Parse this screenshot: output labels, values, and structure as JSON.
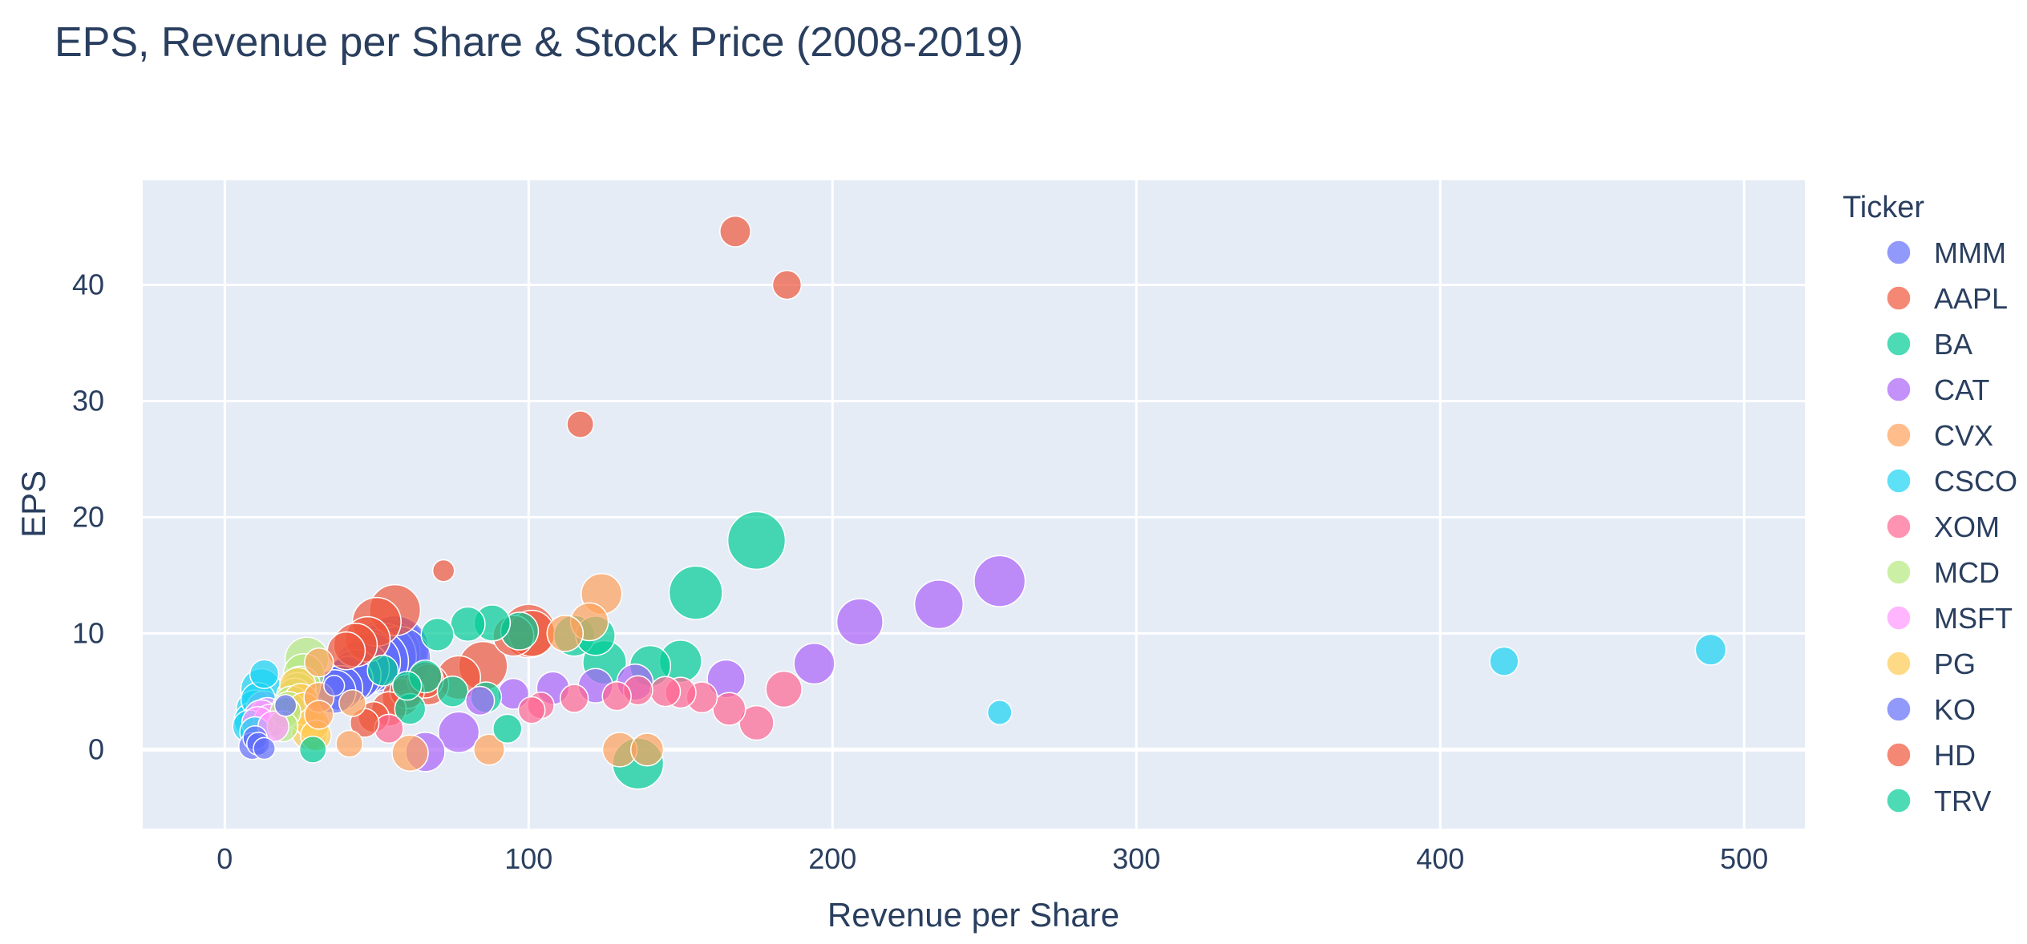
{
  "chart_data": {
    "type": "scatter",
    "title": "EPS, Revenue per Share & Stock Price (2008-2019)",
    "xlabel": "Revenue per Share",
    "ylabel": "EPS",
    "xlim": [
      -27,
      520
    ],
    "ylim": [
      -6.8,
      49
    ],
    "x_ticks": [
      0,
      100,
      200,
      300,
      400,
      500
    ],
    "y_ticks": [
      0,
      10,
      20,
      30,
      40
    ],
    "grid": true,
    "legend_title": "Ticker",
    "legend_position": "right",
    "plot_background": "#e5ecf6",
    "size_variable": "Stock Price",
    "series": [
      {
        "name": "MMM",
        "color": "#636efa",
        "points": [
          {
            "x": 36,
            "y": 5.0,
            "size": 80
          },
          {
            "x": 38,
            "y": 5.3,
            "size": 85
          },
          {
            "x": 41,
            "y": 6.0,
            "size": 95
          },
          {
            "x": 43,
            "y": 6.4,
            "size": 110
          },
          {
            "x": 45,
            "y": 7.0,
            "size": 130
          },
          {
            "x": 48,
            "y": 7.5,
            "size": 150
          },
          {
            "x": 50,
            "y": 7.6,
            "size": 170
          },
          {
            "x": 52,
            "y": 8.0,
            "size": 190
          },
          {
            "x": 53,
            "y": 8.3,
            "size": 200
          },
          {
            "x": 55,
            "y": 8.5,
            "size": 210
          },
          {
            "x": 56,
            "y": 8.6,
            "size": 195
          },
          {
            "x": 57,
            "y": 7.8,
            "size": 180
          }
        ]
      },
      {
        "name": "AAPL",
        "color": "#EF553B",
        "points": [
          {
            "x": 72,
            "y": 15.4,
            "size": 20
          },
          {
            "x": 117,
            "y": 28.0,
            "size": 30
          },
          {
            "x": 168,
            "y": 44.6,
            "size": 40
          },
          {
            "x": 185,
            "y": 40.0,
            "size": 35
          },
          {
            "x": 101,
            "y": 10.0,
            "size": 90
          },
          {
            "x": 56,
            "y": 12.0,
            "size": 110
          },
          {
            "x": 50,
            "y": 11.0,
            "size": 100
          },
          {
            "x": 43,
            "y": 9.0,
            "size": 80
          },
          {
            "x": 47,
            "y": 9.5,
            "size": 85
          },
          {
            "x": 95,
            "y": 9.8,
            "size": 70
          },
          {
            "x": 66,
            "y": 6.0,
            "size": 55
          },
          {
            "x": 60,
            "y": 5.0,
            "size": 50
          }
        ]
      },
      {
        "name": "BA",
        "color": "#00cc96",
        "points": [
          {
            "x": 175,
            "y": 18.0,
            "size": 140
          },
          {
            "x": 155,
            "y": 13.5,
            "size": 120
          },
          {
            "x": 136,
            "y": -1.2,
            "size": 110
          },
          {
            "x": 125,
            "y": 7.5,
            "size": 80
          },
          {
            "x": 140,
            "y": 7.2,
            "size": 70
          },
          {
            "x": 150,
            "y": 7.6,
            "size": 75
          },
          {
            "x": 115,
            "y": 9.8,
            "size": 70
          },
          {
            "x": 122,
            "y": 9.8,
            "size": 65
          },
          {
            "x": 97,
            "y": 10.2,
            "size": 60
          },
          {
            "x": 88,
            "y": 10.9,
            "size": 55
          },
          {
            "x": 80,
            "y": 10.8,
            "size": 50
          },
          {
            "x": 70,
            "y": 9.9,
            "size": 45
          }
        ]
      },
      {
        "name": "CAT",
        "color": "#ab63fa",
        "points": [
          {
            "x": 255,
            "y": 14.5,
            "size": 110
          },
          {
            "x": 235,
            "y": 12.5,
            "size": 100
          },
          {
            "x": 209,
            "y": 11.0,
            "size": 90
          },
          {
            "x": 194,
            "y": 7.4,
            "size": 70
          },
          {
            "x": 165,
            "y": 6.1,
            "size": 60
          },
          {
            "x": 135,
            "y": 5.8,
            "size": 55
          },
          {
            "x": 122,
            "y": 5.5,
            "size": 50
          },
          {
            "x": 108,
            "y": 5.3,
            "size": 45
          },
          {
            "x": 95,
            "y": 4.8,
            "size": 40
          },
          {
            "x": 77,
            "y": 1.5,
            "size": 70
          },
          {
            "x": 66,
            "y": -0.2,
            "size": 65
          },
          {
            "x": 84,
            "y": 4.2,
            "size": 35
          }
        ]
      },
      {
        "name": "CVX",
        "color": "#FFA15A",
        "points": [
          {
            "x": 124,
            "y": 13.4,
            "size": 70
          },
          {
            "x": 120,
            "y": 11.0,
            "size": 60
          },
          {
            "x": 112,
            "y": 10.0,
            "size": 55
          },
          {
            "x": 130,
            "y": 0.0,
            "size": 50
          },
          {
            "x": 139,
            "y": 0.0,
            "size": 45
          },
          {
            "x": 87,
            "y": 0.0,
            "size": 40
          },
          {
            "x": 61,
            "y": -0.3,
            "size": 55
          },
          {
            "x": 41,
            "y": 0.5,
            "size": 30
          },
          {
            "x": 31,
            "y": 3.0,
            "size": 35
          },
          {
            "x": 31,
            "y": 4.5,
            "size": 38
          },
          {
            "x": 42,
            "y": 4.0,
            "size": 30
          },
          {
            "x": 31,
            "y": 7.5,
            "size": 35
          }
        ]
      },
      {
        "name": "CSCO",
        "color": "#19d3f3",
        "points": [
          {
            "x": 489,
            "y": 8.6,
            "size": 40
          },
          {
            "x": 421,
            "y": 7.6,
            "size": 35
          },
          {
            "x": 255,
            "y": 3.2,
            "size": 25
          },
          {
            "x": 12,
            "y": 5.2,
            "size": 70
          },
          {
            "x": 10,
            "y": 3.5,
            "size": 60
          },
          {
            "x": 9,
            "y": 2.5,
            "size": 55
          },
          {
            "x": 8,
            "y": 2.0,
            "size": 45
          },
          {
            "x": 13,
            "y": 6.5,
            "size": 35
          },
          {
            "x": 11,
            "y": 4.3,
            "size": 50
          },
          {
            "x": 10,
            "y": 1.5,
            "size": 40
          }
        ]
      },
      {
        "name": "XOM",
        "color": "#FF6692",
        "points": [
          {
            "x": 184,
            "y": 5.2,
            "size": 55
          },
          {
            "x": 175,
            "y": 2.3,
            "size": 50
          },
          {
            "x": 166,
            "y": 3.5,
            "size": 45
          },
          {
            "x": 157,
            "y": 4.5,
            "size": 40
          },
          {
            "x": 150,
            "y": 4.9,
            "size": 40
          },
          {
            "x": 145,
            "y": 5.0,
            "size": 38
          },
          {
            "x": 136,
            "y": 5.1,
            "size": 36
          },
          {
            "x": 129,
            "y": 4.6,
            "size": 35
          },
          {
            "x": 115,
            "y": 4.4,
            "size": 33
          },
          {
            "x": 104,
            "y": 3.8,
            "size": 30
          },
          {
            "x": 101,
            "y": 3.4,
            "size": 30
          },
          {
            "x": 54,
            "y": 1.8,
            "size": 35
          }
        ]
      },
      {
        "name": "MCD",
        "color": "#B6E880",
        "points": [
          {
            "x": 27,
            "y": 7.8,
            "size": 80
          },
          {
            "x": 26,
            "y": 6.5,
            "size": 70
          },
          {
            "x": 25,
            "y": 5.5,
            "size": 65
          },
          {
            "x": 24,
            "y": 5.0,
            "size": 60
          },
          {
            "x": 23,
            "y": 4.6,
            "size": 55
          },
          {
            "x": 22,
            "y": 4.0,
            "size": 50
          },
          {
            "x": 21,
            "y": 3.6,
            "size": 45
          },
          {
            "x": 20,
            "y": 3.2,
            "size": 40
          },
          {
            "x": 19,
            "y": 2.0,
            "size": 40
          }
        ]
      },
      {
        "name": "MSFT",
        "color": "#FF97FF",
        "points": [
          {
            "x": 16,
            "y": 2.0,
            "size": 40
          },
          {
            "x": 15,
            "y": 2.5,
            "size": 45
          },
          {
            "x": 14,
            "y": 3.0,
            "size": 50
          },
          {
            "x": 13,
            "y": 3.5,
            "size": 55
          },
          {
            "x": 12,
            "y": 2.8,
            "size": 50
          },
          {
            "x": 11,
            "y": 2.3,
            "size": 45
          }
        ]
      },
      {
        "name": "PG",
        "color": "#FECB52",
        "points": [
          {
            "x": 28,
            "y": 1.5,
            "size": 55
          },
          {
            "x": 27,
            "y": 2.8,
            "size": 50
          },
          {
            "x": 26,
            "y": 3.5,
            "size": 45
          },
          {
            "x": 25,
            "y": 4.2,
            "size": 50
          },
          {
            "x": 24,
            "y": 5.5,
            "size": 55
          },
          {
            "x": 29,
            "y": 2.2,
            "size": 45
          },
          {
            "x": 30,
            "y": 1.2,
            "size": 40
          }
        ]
      },
      {
        "name": "KO",
        "color": "#636efa",
        "points": [
          {
            "x": 9,
            "y": 0.3,
            "size": 30
          },
          {
            "x": 10,
            "y": 1.0,
            "size": 25
          },
          {
            "x": 13,
            "y": 0.1,
            "size": 20
          },
          {
            "x": 20,
            "y": 3.8,
            "size": 20
          },
          {
            "x": 36,
            "y": 5.5,
            "size": 18
          },
          {
            "x": 11,
            "y": 0.5,
            "size": 22
          }
        ]
      },
      {
        "name": "HD",
        "color": "#EF553B",
        "points": [
          {
            "x": 100,
            "y": 10.2,
            "size": 120
          },
          {
            "x": 85,
            "y": 7.2,
            "size": 100
          },
          {
            "x": 77,
            "y": 6.2,
            "size": 80
          },
          {
            "x": 67,
            "y": 5.6,
            "size": 70
          },
          {
            "x": 58,
            "y": 4.5,
            "size": 60
          },
          {
            "x": 54,
            "y": 3.5,
            "size": 50
          },
          {
            "x": 49,
            "y": 2.8,
            "size": 40
          },
          {
            "x": 46,
            "y": 2.3,
            "size": 35
          },
          {
            "x": 40,
            "y": 8.5,
            "size": 60
          }
        ]
      },
      {
        "name": "TRV",
        "color": "#00cc96",
        "points": [
          {
            "x": 93,
            "y": 1.8,
            "size": 35
          },
          {
            "x": 86,
            "y": 4.5,
            "size": 40
          },
          {
            "x": 75,
            "y": 5.0,
            "size": 40
          },
          {
            "x": 66,
            "y": 6.3,
            "size": 45
          },
          {
            "x": 61,
            "y": 3.5,
            "size": 40
          },
          {
            "x": 52,
            "y": 6.8,
            "size": 40
          },
          {
            "x": 29,
            "y": 0.0,
            "size": 30
          },
          {
            "x": 60,
            "y": 5.5,
            "size": 35
          }
        ]
      }
    ]
  }
}
